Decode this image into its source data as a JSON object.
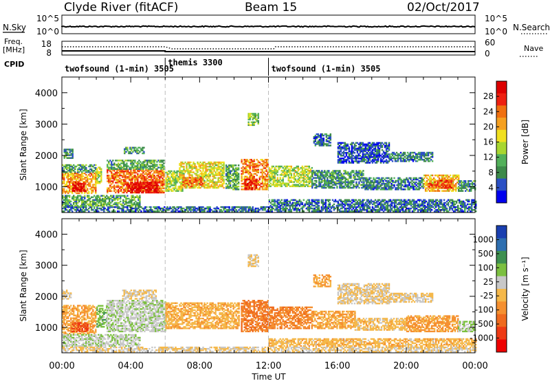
{
  "header": {
    "station": "Clyde River (fitACF)",
    "beam": "Beam 15",
    "date": "02/Oct/2017"
  },
  "top_panel": {
    "left_label": "N.Sky",
    "left_ticks": [
      "10^5",
      "10^0"
    ],
    "right_ticks": [
      "10^5",
      "10^0"
    ],
    "right_label": "N.Search"
  },
  "freq_panel": {
    "left_label_line1": "Freq.",
    "left_label_line2": "[MHz]",
    "left_ticks": [
      "18",
      "8"
    ],
    "right_ticks": [
      "60",
      "0"
    ],
    "right_label": "Nave"
  },
  "cpid": {
    "label": "CPID",
    "segments": [
      {
        "name": "twofsound (1-min) 3505",
        "start_hour": 0
      },
      {
        "name": "themis 3300",
        "start_hour": 6
      },
      {
        "name": "twofsound (1-min) 3505",
        "start_hour": 12
      }
    ]
  },
  "colors": {
    "power_scale": [
      "#0000ee",
      "#2b50c4",
      "#3d8a4a",
      "#52b05a",
      "#a8d630",
      "#f0e020",
      "#f5a020",
      "#f07010",
      "#ee2010",
      "#dd0000"
    ],
    "velocity_scale": [
      "#1a3fb0",
      "#2e6fb0",
      "#3e9050",
      "#7cc040",
      "#c8c8c8",
      "#f5b84a",
      "#f59030",
      "#ef6a1e",
      "#ee3a14",
      "#ee0000"
    ],
    "ground_scatter": "#a8a8a8"
  },
  "chart_data": [
    {
      "type": "heatmap",
      "name": "power",
      "xlabel": "Time UT",
      "ylabel": "Slant Range [km]",
      "xlim": [
        0,
        24
      ],
      "ylim": [
        180,
        4500
      ],
      "x_ticks": [
        "00:00",
        "04:00",
        "08:00",
        "12:00",
        "16:00",
        "20:00",
        "00:00"
      ],
      "y_ticks": [
        1000,
        2000,
        3000,
        4000
      ],
      "colorbar_label": "Power [dB]",
      "colorbar_ticks": [
        "28",
        "24",
        "20",
        "16",
        "12",
        "8",
        "4"
      ],
      "colorbar_range": [
        0,
        30
      ],
      "regions": [
        {
          "t0": 0.0,
          "t1": 2.0,
          "r0": 780,
          "r1": 1450,
          "v": 20
        },
        {
          "t0": 0.6,
          "t1": 1.4,
          "r0": 850,
          "r1": 1150,
          "v": 27
        },
        {
          "t0": 0.0,
          "t1": 2.0,
          "r0": 1450,
          "r1": 1700,
          "v": 9
        },
        {
          "t0": 0.1,
          "t1": 0.6,
          "r0": 1900,
          "r1": 2200,
          "v": 8
        },
        {
          "t0": 2.0,
          "t1": 2.3,
          "r0": 1100,
          "r1": 1600,
          "v": 14
        },
        {
          "t0": 2.6,
          "t1": 5.9,
          "r0": 800,
          "r1": 1550,
          "v": 22
        },
        {
          "t0": 3.8,
          "t1": 5.6,
          "r0": 800,
          "r1": 1150,
          "v": 28
        },
        {
          "t0": 2.6,
          "t1": 5.9,
          "r0": 1550,
          "r1": 1850,
          "v": 10
        },
        {
          "t0": 3.6,
          "t1": 4.8,
          "r0": 2050,
          "r1": 2250,
          "v": 9
        },
        {
          "t0": 6.0,
          "t1": 7.0,
          "r0": 850,
          "r1": 1500,
          "v": 14
        },
        {
          "t0": 6.8,
          "t1": 9.4,
          "r0": 950,
          "r1": 1800,
          "v": 16
        },
        {
          "t0": 7.0,
          "t1": 8.2,
          "r0": 1000,
          "r1": 1300,
          "v": 22
        },
        {
          "t0": 9.5,
          "t1": 10.3,
          "r0": 900,
          "r1": 1700,
          "v": 10
        },
        {
          "t0": 10.4,
          "t1": 12.0,
          "r0": 900,
          "r1": 1850,
          "v": 21
        },
        {
          "t0": 10.6,
          "t1": 11.3,
          "r0": 900,
          "r1": 1250,
          "v": 27
        },
        {
          "t0": 12.0,
          "t1": 14.5,
          "r0": 1000,
          "r1": 1650,
          "v": 14
        },
        {
          "t0": 14.5,
          "t1": 17.5,
          "r0": 950,
          "r1": 1500,
          "v": 8
        },
        {
          "t0": 17.5,
          "t1": 21.0,
          "r0": 900,
          "r1": 1300,
          "v": 7
        },
        {
          "t0": 21.0,
          "t1": 23.0,
          "r0": 850,
          "r1": 1350,
          "v": 18
        },
        {
          "t0": 21.3,
          "t1": 22.6,
          "r0": 950,
          "r1": 1200,
          "v": 24
        },
        {
          "t0": 23.0,
          "t1": 24.0,
          "r0": 850,
          "r1": 1200,
          "v": 8
        },
        {
          "t0": 10.8,
          "t1": 11.4,
          "r0": 2950,
          "r1": 3350,
          "v": 12
        },
        {
          "t0": 14.6,
          "t1": 15.6,
          "r0": 2300,
          "r1": 2700,
          "v": 6
        },
        {
          "t0": 16.0,
          "t1": 19.0,
          "r0": 1750,
          "r1": 2400,
          "v": 5
        },
        {
          "t0": 19.0,
          "t1": 21.5,
          "r0": 1800,
          "r1": 2100,
          "v": 7
        },
        {
          "t0": 0.0,
          "t1": 24.0,
          "r0": 200,
          "r1": 380,
          "v": 6
        },
        {
          "t0": 0.0,
          "t1": 4.5,
          "r0": 380,
          "r1": 700,
          "v": 10
        },
        {
          "t0": 12.0,
          "t1": 24.0,
          "r0": 380,
          "r1": 600,
          "v": 6
        }
      ]
    },
    {
      "type": "heatmap",
      "name": "velocity",
      "xlabel": "Time UT",
      "ylabel": "Slant Range [km]",
      "xlim": [
        0,
        24
      ],
      "ylim": [
        180,
        4500
      ],
      "x_ticks": [
        "00:00",
        "04:00",
        "08:00",
        "12:00",
        "16:00",
        "20:00",
        "00:00"
      ],
      "y_ticks": [
        1000,
        2000,
        3000,
        4000
      ],
      "colorbar_label": "Velocity [m s^-1]",
      "colorbar_ticks": [
        "1000",
        "500",
        "100",
        "25",
        "-25",
        "-100",
        "-500",
        "-1000"
      ],
      "colorbar_range": [
        -1000,
        1000
      ],
      "regions": [
        {
          "t0": 0.0,
          "t1": 2.0,
          "r0": 780,
          "r1": 1700,
          "v": -200
        },
        {
          "t0": 0.5,
          "t1": 1.5,
          "r0": 850,
          "r1": 1150,
          "v": -600
        },
        {
          "t0": 0.0,
          "t1": 0.5,
          "r0": 1900,
          "r1": 2200,
          "v": 0
        },
        {
          "t0": 2.0,
          "t1": 2.6,
          "r0": 1000,
          "r1": 1700,
          "v": 300
        },
        {
          "t0": 2.6,
          "t1": 6.0,
          "r0": 850,
          "r1": 1850,
          "v": 150
        },
        {
          "t0": 3.5,
          "t1": 5.5,
          "r0": 1900,
          "r1": 2200,
          "v": 0
        },
        {
          "t0": 6.0,
          "t1": 10.3,
          "r0": 950,
          "r1": 1800,
          "v": -150
        },
        {
          "t0": 10.4,
          "t1": 12.0,
          "r0": 850,
          "r1": 1850,
          "v": -400
        },
        {
          "t0": 12.0,
          "t1": 14.5,
          "r0": 950,
          "r1": 1650,
          "v": -350
        },
        {
          "t0": 14.5,
          "t1": 17.0,
          "r0": 950,
          "r1": 1500,
          "v": -200
        },
        {
          "t0": 17.0,
          "t1": 20.0,
          "r0": 900,
          "r1": 1300,
          "v": -100
        },
        {
          "t0": 20.0,
          "t1": 23.0,
          "r0": 850,
          "r1": 1350,
          "v": -250
        },
        {
          "t0": 23.0,
          "t1": 24.0,
          "r0": 850,
          "r1": 1200,
          "v": 200
        },
        {
          "t0": 10.8,
          "t1": 11.4,
          "r0": 2950,
          "r1": 3350,
          "v": 0
        },
        {
          "t0": 14.6,
          "t1": 15.6,
          "r0": 2300,
          "r1": 2700,
          "v": -200
        },
        {
          "t0": 16.0,
          "t1": 19.0,
          "r0": 1750,
          "r1": 2400,
          "v": 0
        },
        {
          "t0": 19.0,
          "t1": 21.5,
          "r0": 1800,
          "r1": 2100,
          "v": 0
        },
        {
          "t0": 0.0,
          "t1": 4.5,
          "r0": 380,
          "r1": 750,
          "v": 150
        },
        {
          "t0": 0.0,
          "t1": 24.0,
          "r0": 200,
          "r1": 380,
          "v": 0
        },
        {
          "t0": 12.0,
          "t1": 24.0,
          "r0": 380,
          "r1": 650,
          "v": -120
        }
      ]
    }
  ]
}
